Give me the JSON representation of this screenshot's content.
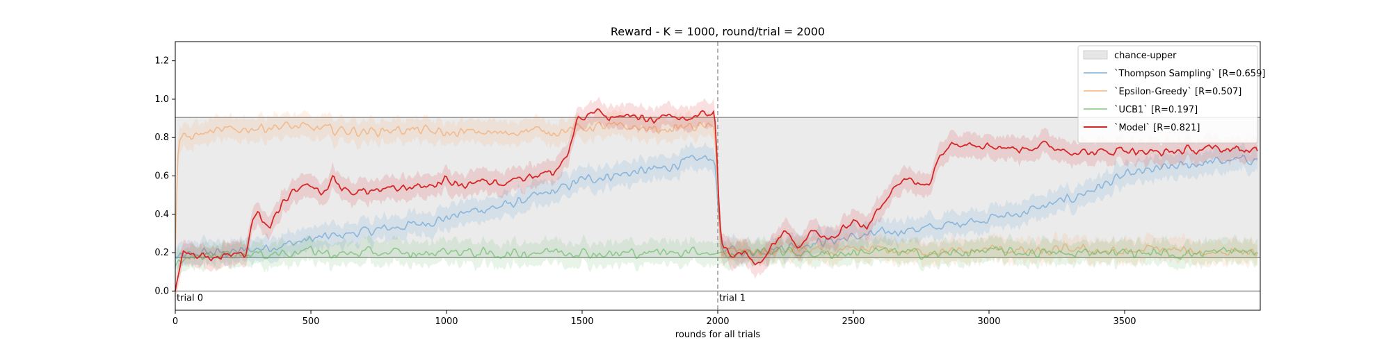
{
  "chart_data": {
    "type": "line",
    "title": "Reward - K = 1000, round/trial = 2000",
    "xlabel": "rounds for all trials",
    "ylabel": "",
    "xlim": [
      0,
      4000
    ],
    "ylim": [
      -0.1,
      1.3
    ],
    "x_ticks": [
      0,
      500,
      1000,
      1500,
      2000,
      2500,
      3000,
      3500
    ],
    "y_ticks": [
      0.0,
      0.2,
      0.4,
      0.6,
      0.8,
      1.0,
      1.2
    ],
    "grid": false,
    "legend_position": "top-right",
    "chance_band": {
      "label": "chance-upper",
      "lower": 0.175,
      "upper": 0.905,
      "color": "#d9d9d9"
    },
    "horizontal_lines": [
      0.0,
      0.175,
      0.905
    ],
    "trial_boundary": {
      "x": 2000,
      "style": "dashed",
      "color": "#999999"
    },
    "annotations": [
      {
        "text": "trial 0",
        "x": 0,
        "y": 0.0
      },
      {
        "text": "trial 1",
        "x": 2000,
        "y": 0.0
      }
    ],
    "series": [
      {
        "name": "`Thompson Sampling` [R=0.659]",
        "color": "#5a9bd3",
        "opacity": 0.6,
        "x": [
          0,
          100,
          200,
          300,
          400,
          500,
          600,
          700,
          800,
          900,
          1000,
          1100,
          1200,
          1300,
          1400,
          1500,
          1600,
          1700,
          1800,
          1900,
          1990,
          2010,
          2100,
          2200,
          2300,
          2400,
          2500,
          2600,
          2700,
          2800,
          2900,
          3000,
          3100,
          3200,
          3300,
          3400,
          3500,
          3600,
          3700,
          3800,
          3900,
          3990
        ],
        "values": [
          0.17,
          0.2,
          0.2,
          0.22,
          0.24,
          0.27,
          0.29,
          0.31,
          0.33,
          0.35,
          0.38,
          0.42,
          0.44,
          0.48,
          0.52,
          0.58,
          0.6,
          0.62,
          0.64,
          0.68,
          0.7,
          0.22,
          0.2,
          0.22,
          0.24,
          0.26,
          0.28,
          0.3,
          0.32,
          0.33,
          0.36,
          0.38,
          0.4,
          0.44,
          0.48,
          0.54,
          0.6,
          0.63,
          0.65,
          0.67,
          0.68,
          0.69
        ]
      },
      {
        "name": "`Epsilon-Greedy` [R=0.507]",
        "color": "#f5a25d",
        "opacity": 0.6,
        "x": [
          0,
          10,
          30,
          100,
          200,
          300,
          400,
          500,
          600,
          700,
          800,
          900,
          1000,
          1100,
          1200,
          1300,
          1400,
          1500,
          1600,
          1700,
          1800,
          1900,
          1990,
          2010,
          2100,
          2200,
          2300,
          2400,
          2500,
          2600,
          2700,
          2800,
          2900,
          3000,
          3100,
          3200,
          3300,
          3400,
          3500,
          3600,
          3700,
          3800,
          3900,
          3990
        ],
        "values": [
          0.2,
          0.78,
          0.8,
          0.82,
          0.84,
          0.85,
          0.86,
          0.85,
          0.84,
          0.83,
          0.84,
          0.84,
          0.82,
          0.83,
          0.82,
          0.84,
          0.83,
          0.85,
          0.86,
          0.85,
          0.84,
          0.86,
          0.85,
          0.2,
          0.21,
          0.2,
          0.22,
          0.2,
          0.21,
          0.22,
          0.2,
          0.21,
          0.2,
          0.22,
          0.21,
          0.2,
          0.22,
          0.21,
          0.2,
          0.22,
          0.21,
          0.2,
          0.21,
          0.2
        ]
      },
      {
        "name": "`UCB1` [R=0.197]",
        "color": "#5fb85f",
        "opacity": 0.6,
        "x": [
          0,
          100,
          200,
          300,
          400,
          500,
          600,
          700,
          800,
          900,
          1000,
          1100,
          1200,
          1300,
          1400,
          1500,
          1600,
          1700,
          1800,
          1900,
          1990,
          2010,
          2100,
          2200,
          2300,
          2400,
          2500,
          2600,
          2700,
          2800,
          2900,
          3000,
          3100,
          3200,
          3300,
          3400,
          3500,
          3600,
          3700,
          3800,
          3900,
          3990
        ],
        "values": [
          0.15,
          0.18,
          0.2,
          0.19,
          0.2,
          0.21,
          0.19,
          0.2,
          0.2,
          0.19,
          0.21,
          0.2,
          0.19,
          0.2,
          0.21,
          0.2,
          0.19,
          0.2,
          0.2,
          0.21,
          0.2,
          0.19,
          0.2,
          0.21,
          0.2,
          0.19,
          0.2,
          0.21,
          0.2,
          0.19,
          0.2,
          0.21,
          0.2,
          0.2,
          0.19,
          0.21,
          0.2,
          0.2,
          0.19,
          0.2,
          0.21,
          0.2
        ]
      },
      {
        "name": "`Model` [R=0.821]",
        "color": "#d62728",
        "opacity": 1.0,
        "x": [
          0,
          30,
          80,
          150,
          230,
          260,
          280,
          310,
          350,
          380,
          420,
          450,
          500,
          550,
          580,
          620,
          700,
          800,
          900,
          950,
          1000,
          1050,
          1100,
          1200,
          1300,
          1400,
          1450,
          1480,
          1550,
          1600,
          1650,
          1700,
          1800,
          1900,
          1950,
          1990,
          2010,
          2060,
          2100,
          2150,
          2200,
          2250,
          2300,
          2350,
          2400,
          2450,
          2500,
          2550,
          2600,
          2650,
          2700,
          2750,
          2790,
          2800,
          2850,
          2900,
          3000,
          3100,
          3200,
          3300,
          3400,
          3500,
          3600,
          3700,
          3800,
          3900,
          3990
        ],
        "values": [
          0.0,
          0.22,
          0.18,
          0.18,
          0.2,
          0.17,
          0.35,
          0.4,
          0.32,
          0.42,
          0.5,
          0.52,
          0.55,
          0.5,
          0.6,
          0.52,
          0.52,
          0.53,
          0.55,
          0.55,
          0.58,
          0.55,
          0.57,
          0.57,
          0.6,
          0.62,
          0.72,
          0.88,
          0.94,
          0.9,
          0.92,
          0.9,
          0.9,
          0.9,
          0.92,
          0.94,
          0.25,
          0.18,
          0.2,
          0.12,
          0.24,
          0.3,
          0.24,
          0.32,
          0.26,
          0.3,
          0.38,
          0.32,
          0.45,
          0.55,
          0.58,
          0.55,
          0.58,
          0.66,
          0.76,
          0.78,
          0.76,
          0.74,
          0.76,
          0.73,
          0.72,
          0.74,
          0.72,
          0.73,
          0.74,
          0.74,
          0.73
        ]
      }
    ]
  }
}
